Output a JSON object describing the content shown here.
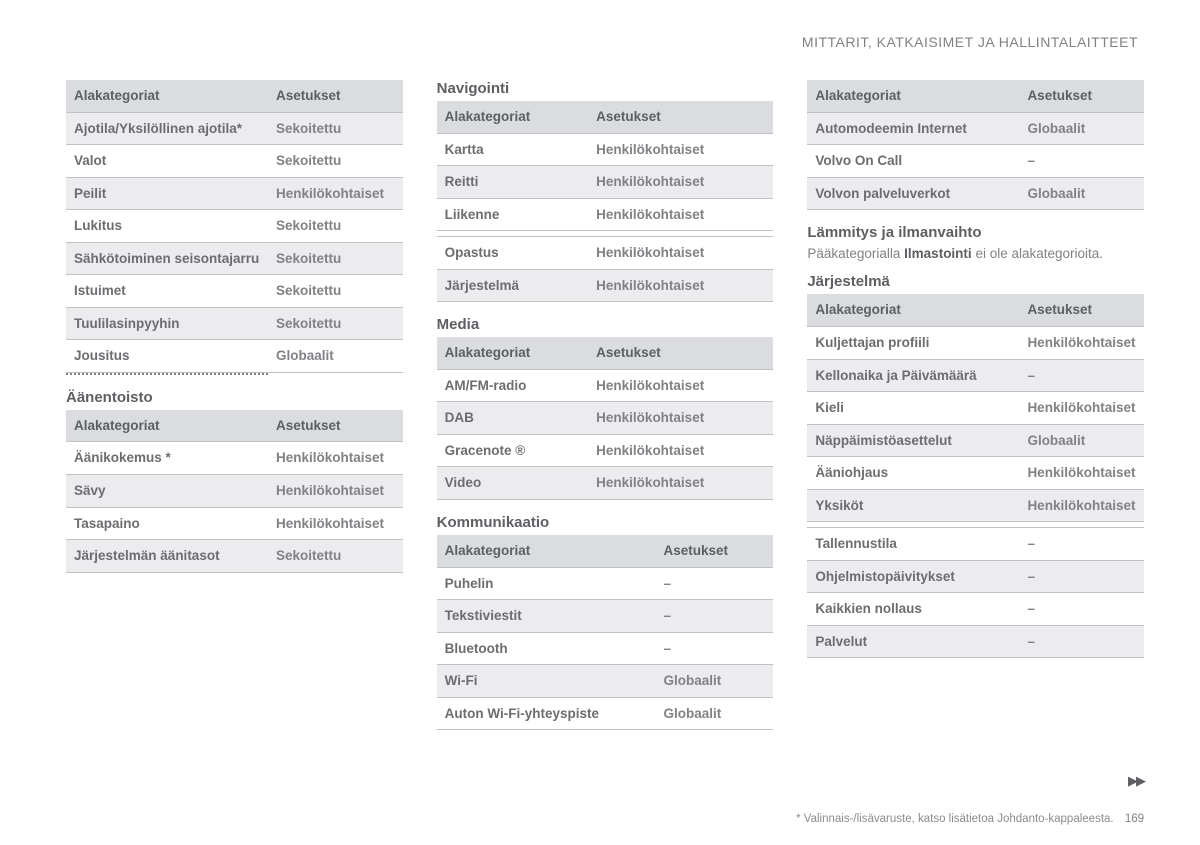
{
  "header": "MITTARIT, KATKAISIMET JA HALLINTALAITTEET",
  "labels": {
    "subcat": "Alakategoriat",
    "settings": "Asetukset"
  },
  "col1": {
    "table1": {
      "rows": [
        {
          "c": "Ajotila/Yksilöllinen ajotila*",
          "v": "Sekoitettu",
          "shade": true
        },
        {
          "c": "Valot",
          "v": "Sekoitettu",
          "shade": false
        },
        {
          "c": "Peilit",
          "v": "Henkilökohtaiset",
          "shade": true
        },
        {
          "c": "Lukitus",
          "v": "Sekoitettu",
          "shade": false
        },
        {
          "c": "Sähkötoiminen seisontajarru",
          "v": "Sekoitettu",
          "shade": true
        },
        {
          "c": "Istuimet",
          "v": "Sekoitettu",
          "shade": false
        },
        {
          "c": "Tuulilasinpyyhin",
          "v": "Sekoitettu",
          "shade": true
        },
        {
          "c": "Jousitus",
          "v": "Globaalit",
          "shade": false
        }
      ]
    },
    "section2_title": "Äänentoisto",
    "table2": {
      "rows": [
        {
          "c": "Äänikokemus *",
          "v": "Henkilökohtaiset",
          "shade": false
        },
        {
          "c": "Sävy",
          "v": "Henkilökohtaiset",
          "shade": true
        },
        {
          "c": "Tasapaino",
          "v": "Henkilökohtaiset",
          "shade": false
        },
        {
          "c": "Järjestelmän äänitasot",
          "v": "Sekoitettu",
          "shade": true
        }
      ]
    }
  },
  "col2": {
    "section1_title": "Navigointi",
    "table1": {
      "rows": [
        {
          "c": "Kartta",
          "v": "Henkilökohtaiset",
          "shade": false
        },
        {
          "c": "Reitti",
          "v": "Henkilökohtaiset",
          "shade": true
        },
        {
          "c": "Liikenne",
          "v": "Henkilökohtaiset",
          "shade": false
        },
        {
          "spacer": true
        },
        {
          "c": "Opastus",
          "v": "Henkilökohtaiset",
          "shade": false
        },
        {
          "c": "Järjestelmä",
          "v": "Henkilökohtaiset",
          "shade": true
        }
      ]
    },
    "section2_title": "Media",
    "table2": {
      "rows": [
        {
          "c": "AM/FM-radio",
          "v": "Henkilökohtaiset",
          "shade": false
        },
        {
          "c": "DAB",
          "v": "Henkilökohtaiset",
          "shade": true
        },
        {
          "c": "Gracenote ®",
          "v": "Henkilökohtaiset",
          "shade": false
        },
        {
          "c": "Video",
          "v": "Henkilökohtaiset",
          "shade": true
        }
      ]
    },
    "section3_title": "Kommunikaatio",
    "table3": {
      "rows": [
        {
          "c": "Puhelin",
          "v": "–",
          "shade": false
        },
        {
          "c": "Tekstiviestit",
          "v": "–",
          "shade": true
        },
        {
          "c": "Bluetooth",
          "v": "–",
          "shade": false
        },
        {
          "c": "Wi-Fi",
          "v": "Globaalit",
          "shade": true
        },
        {
          "c": "Auton Wi-Fi-yhteyspiste",
          "v": "Globaalit",
          "shade": false
        }
      ]
    }
  },
  "col3": {
    "table1": {
      "rows": [
        {
          "c": "Automodeemin Internet",
          "v": "Globaalit",
          "shade": true
        },
        {
          "c": "Volvo On Call",
          "v": "–",
          "shade": false
        },
        {
          "c": "Volvon palveluverkot",
          "v": "Globaalit",
          "shade": true
        }
      ]
    },
    "section2_title": "Lämmitys ja ilmanvaihto",
    "section2_note_pre": "Pääkategorialla ",
    "section2_note_bold": "Ilmastointi",
    "section2_note_post": " ei ole alakategorioita.",
    "section3_title": "Järjestelmä",
    "table3": {
      "rows": [
        {
          "c": "Kuljettajan profiili",
          "v": "Henkilökohtaiset",
          "shade": false
        },
        {
          "c": "Kellonaika ja Päivämäärä",
          "v": "–",
          "shade": true
        },
        {
          "c": "Kieli",
          "v": "Henkilökohtaiset",
          "shade": false
        },
        {
          "c": "Näppäimistöasettelut",
          "v": "Globaalit",
          "shade": true
        },
        {
          "c": "Ääniohjaus",
          "v": "Henkilökohtaiset",
          "shade": false
        },
        {
          "c": "Yksiköt",
          "v": "Henkilökohtaiset",
          "shade": true
        },
        {
          "spacer": true
        },
        {
          "c": "Tallennustila",
          "v": "–",
          "shade": false
        },
        {
          "c": "Ohjelmistopäivitykset",
          "v": "–",
          "shade": true
        },
        {
          "c": "Kaikkien nollaus",
          "v": "–",
          "shade": false
        },
        {
          "c": "Palvelut",
          "v": "–",
          "shade": true
        }
      ]
    }
  },
  "footer": {
    "note": "* Valinnais-/lisävaruste, katso lisätietoa Johdanto-kappaleesta.",
    "page": "169"
  }
}
